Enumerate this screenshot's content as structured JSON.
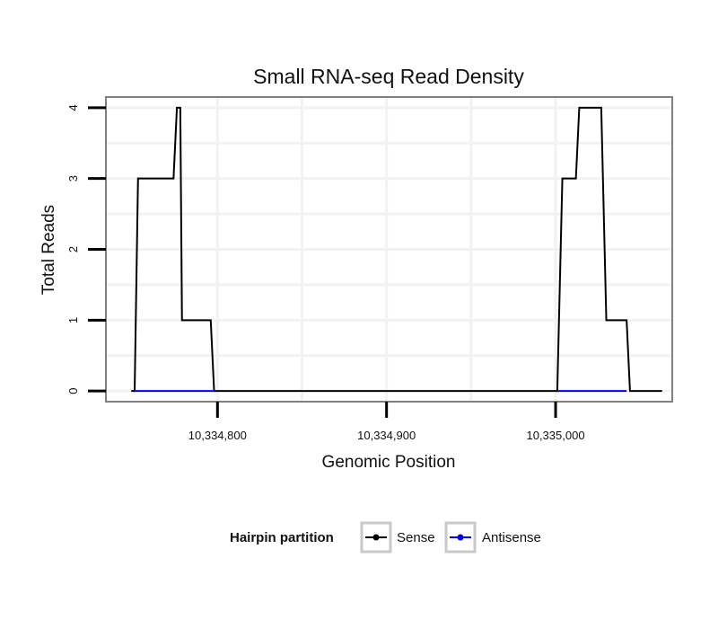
{
  "chart_data": {
    "type": "line",
    "title": "Small RNA-seq Read Density",
    "xlabel": "Genomic Position",
    "ylabel": "Total Reads",
    "xlim": [
      10334734,
      10335069
    ],
    "ylim": [
      -0.15,
      4.15
    ],
    "x_ticks": [
      10334800,
      10334900,
      10335000
    ],
    "x_tick_labels": [
      "10,334,800",
      "10,334,900",
      "10,335,000"
    ],
    "y_ticks": [
      0,
      1,
      2,
      3,
      4
    ],
    "y_tick_labels": [
      "0",
      "1",
      "2",
      "3",
      "4"
    ],
    "grid": true,
    "legend": {
      "title": "Hairpin partition",
      "position": "bottom",
      "entries": [
        {
          "name": "Sense",
          "color": "#000000"
        },
        {
          "name": "Antisense",
          "color": "#0000ff"
        }
      ]
    },
    "series": [
      {
        "name": "Sense",
        "color": "#000000",
        "x": [
          10334749,
          10334751,
          10334753,
          10334774,
          10334776,
          10334778,
          10334779,
          10334796,
          10334798,
          10335001,
          10335003,
          10335004,
          10335012,
          10335014,
          10335027,
          10335030,
          10335042,
          10335044,
          10335063
        ],
        "y": [
          0,
          0,
          3,
          3,
          4,
          4,
          1,
          1,
          0,
          0,
          2,
          3,
          3,
          4,
          4,
          1,
          1,
          0,
          0
        ]
      },
      {
        "name": "Antisense",
        "color": "#0000ff",
        "x": [
          10334751,
          10334798,
          10335001,
          10335042
        ],
        "y": [
          0,
          0,
          0,
          0
        ],
        "segments": [
          [
            0,
            1
          ],
          [
            2,
            3
          ]
        ]
      }
    ]
  }
}
